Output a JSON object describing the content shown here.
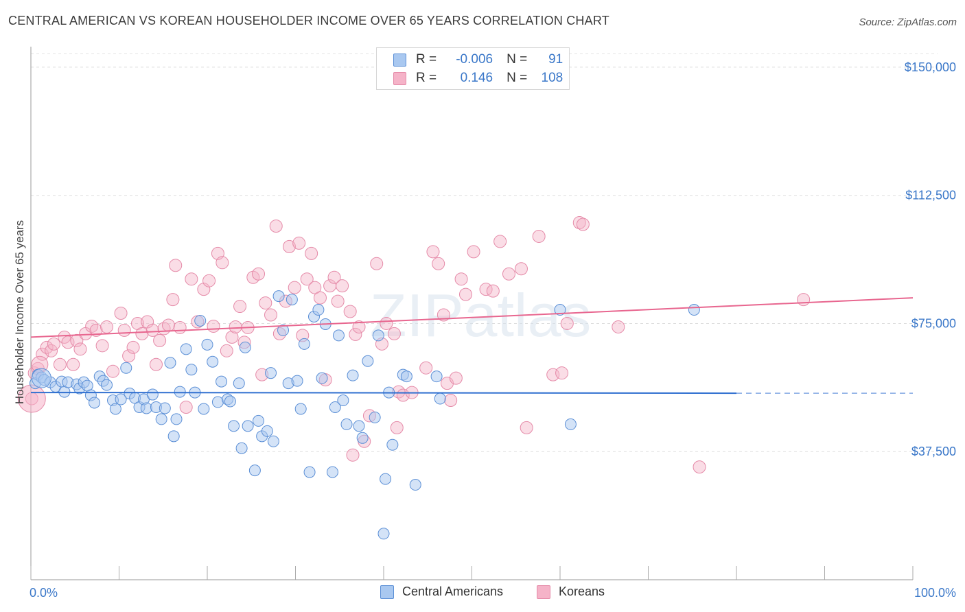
{
  "title": "CENTRAL AMERICAN VS KOREAN HOUSEHOLDER INCOME OVER 65 YEARS CORRELATION CHART",
  "source": "Source: ZipAtlas.com",
  "watermark": "ZIPatlas",
  "legend": {
    "rows": [
      {
        "r_label": "R =",
        "r_value": "-0.006",
        "n_label": "N =",
        "n_value": "91",
        "color": "#a9c8f0"
      },
      {
        "r_label": "R =",
        "r_value": "0.146",
        "n_label": "N =",
        "n_value": "108",
        "color": "#f5b3c8"
      }
    ]
  },
  "bottom_legend": [
    {
      "label": "Central Americans",
      "color": "#a9c8f0"
    },
    {
      "label": "Koreans",
      "color": "#f5b3c8"
    }
  ],
  "chart_data": {
    "type": "scatter",
    "xlabel": "",
    "ylabel": "Householder Income Over 65 years",
    "x_tick_labels": [
      "0.0%",
      "100.0%"
    ],
    "y_tick_labels": [
      "$150,000",
      "$112,500",
      "$75,000",
      "$37,500"
    ],
    "y_tick_values": [
      150000,
      112500,
      75000,
      37500
    ],
    "xlim": [
      0,
      100
    ],
    "ylim": [
      0,
      154000
    ],
    "grid": "horizontal dashed",
    "colors": {
      "blue_fill": "#a9c8f0",
      "blue_stroke": "#5b8fd6",
      "blue_line": "#2f6fd0",
      "pink_fill": "#f5b3c8",
      "pink_stroke": "#e58aa8",
      "pink_line": "#e8668f"
    },
    "series": [
      {
        "name": "Central Americans",
        "trend": {
          "x0": 0,
          "y0": 54800,
          "x1": 80,
          "y1": 54600,
          "dashed_to": 100
        },
        "points": [
          [
            0.5,
            57500
          ],
          [
            0.8,
            60000
          ],
          [
            1.2,
            59200
          ],
          [
            1.5,
            58500
          ],
          [
            2.2,
            57800
          ],
          [
            2.8,
            56500
          ],
          [
            3.5,
            58000
          ],
          [
            3.8,
            55000
          ],
          [
            4.2,
            57800
          ],
          [
            5.2,
            57200
          ],
          [
            5.5,
            56000
          ],
          [
            6,
            57800
          ],
          [
            6.4,
            56800
          ],
          [
            6.8,
            54000
          ],
          [
            7.2,
            51800
          ],
          [
            7.8,
            59500
          ],
          [
            8.2,
            58200
          ],
          [
            8.6,
            57000
          ],
          [
            9.3,
            52500
          ],
          [
            9.6,
            50000
          ],
          [
            10.2,
            52800
          ],
          [
            10.8,
            62000
          ],
          [
            11.2,
            54500
          ],
          [
            11.8,
            53200
          ],
          [
            12.3,
            50500
          ],
          [
            12.8,
            52800
          ],
          [
            13.1,
            50200
          ],
          [
            13.8,
            54200
          ],
          [
            14.2,
            50500
          ],
          [
            14.8,
            47000
          ],
          [
            15.2,
            50200
          ],
          [
            15.8,
            63500
          ],
          [
            16.2,
            42000
          ],
          [
            16.5,
            47000
          ],
          [
            16.9,
            55000
          ],
          [
            17.6,
            67500
          ],
          [
            18.2,
            61500
          ],
          [
            18.6,
            54800
          ],
          [
            19.2,
            75800
          ],
          [
            19.6,
            50000
          ],
          [
            20,
            68800
          ],
          [
            20.6,
            63800
          ],
          [
            21.2,
            52000
          ],
          [
            21.6,
            58000
          ],
          [
            22.3,
            52800
          ],
          [
            22.6,
            52200
          ],
          [
            23,
            45000
          ],
          [
            23.6,
            57500
          ],
          [
            23.9,
            38500
          ],
          [
            24.3,
            68000
          ],
          [
            24.6,
            45000
          ],
          [
            25.4,
            32000
          ],
          [
            25.8,
            46500
          ],
          [
            26.2,
            42000
          ],
          [
            26.8,
            43500
          ],
          [
            27.2,
            60500
          ],
          [
            27.5,
            40500
          ],
          [
            28.1,
            83000
          ],
          [
            28.6,
            73000
          ],
          [
            29.2,
            57500
          ],
          [
            29.6,
            82000
          ],
          [
            30.2,
            58200
          ],
          [
            30.6,
            50000
          ],
          [
            31,
            69000
          ],
          [
            31.6,
            31500
          ],
          [
            32.1,
            77000
          ],
          [
            32.6,
            79000
          ],
          [
            33,
            59000
          ],
          [
            33.4,
            74800
          ],
          [
            34.2,
            31500
          ],
          [
            34.5,
            50500
          ],
          [
            34.9,
            71500
          ],
          [
            35.4,
            52500
          ],
          [
            35.8,
            45500
          ],
          [
            36.5,
            59800
          ],
          [
            37.2,
            45000
          ],
          [
            37.6,
            41500
          ],
          [
            38.2,
            64000
          ],
          [
            39,
            47500
          ],
          [
            39.4,
            71500
          ],
          [
            40.2,
            29500
          ],
          [
            40.6,
            54800
          ],
          [
            41,
            39500
          ],
          [
            42.2,
            60000
          ],
          [
            42.6,
            59500
          ],
          [
            43.6,
            27800
          ],
          [
            46,
            59500
          ],
          [
            46.4,
            53000
          ],
          [
            60,
            79000
          ],
          [
            61.2,
            45500
          ],
          [
            75.2,
            79000
          ],
          [
            40,
            13500
          ]
        ]
      },
      {
        "name": "Koreans",
        "trend": {
          "x0": 0,
          "y0": 71000,
          "x1": 100,
          "y1": 82500
        },
        "points": [
          [
            0.1,
            53000
          ],
          [
            0.4,
            60500
          ],
          [
            0.8,
            61800
          ],
          [
            1.3,
            66000
          ],
          [
            1.8,
            68000
          ],
          [
            2.3,
            67000
          ],
          [
            2.6,
            69000
          ],
          [
            3.3,
            63000
          ],
          [
            3.8,
            71000
          ],
          [
            4.2,
            69500
          ],
          [
            4.8,
            63000
          ],
          [
            5.2,
            70000
          ],
          [
            5.6,
            67500
          ],
          [
            6.2,
            72000
          ],
          [
            6.9,
            74200
          ],
          [
            7.4,
            73000
          ],
          [
            8.1,
            68500
          ],
          [
            8.6,
            74000
          ],
          [
            9.3,
            61000
          ],
          [
            10.2,
            78000
          ],
          [
            10.6,
            73000
          ],
          [
            11.1,
            65500
          ],
          [
            11.6,
            68000
          ],
          [
            12.1,
            75000
          ],
          [
            12.6,
            72000
          ],
          [
            13.2,
            75500
          ],
          [
            13.8,
            73000
          ],
          [
            14.2,
            63000
          ],
          [
            14.6,
            70000
          ],
          [
            15.1,
            73500
          ],
          [
            15.6,
            74500
          ],
          [
            16.1,
            82000
          ],
          [
            16.4,
            92000
          ],
          [
            16.9,
            73800
          ],
          [
            17.6,
            50500
          ],
          [
            18.2,
            88000
          ],
          [
            18.9,
            75500
          ],
          [
            19.6,
            85000
          ],
          [
            20.2,
            87500
          ],
          [
            20.7,
            74200
          ],
          [
            21.2,
            95500
          ],
          [
            21.7,
            92800
          ],
          [
            22.2,
            67000
          ],
          [
            22.8,
            71000
          ],
          [
            23.2,
            74000
          ],
          [
            23.7,
            80000
          ],
          [
            24.2,
            69500
          ],
          [
            24.6,
            73800
          ],
          [
            25.2,
            88500
          ],
          [
            25.8,
            89500
          ],
          [
            26.2,
            60000
          ],
          [
            26.6,
            81000
          ],
          [
            27.2,
            77500
          ],
          [
            27.8,
            103500
          ],
          [
            28.2,
            72000
          ],
          [
            28.9,
            81500
          ],
          [
            29.3,
            97500
          ],
          [
            29.9,
            85500
          ],
          [
            30.4,
            98500
          ],
          [
            30.8,
            71500
          ],
          [
            31.3,
            88000
          ],
          [
            31.8,
            95500
          ],
          [
            32.2,
            85500
          ],
          [
            32.8,
            82500
          ],
          [
            33.4,
            58500
          ],
          [
            33.9,
            86000
          ],
          [
            34.4,
            88500
          ],
          [
            34.8,
            81500
          ],
          [
            35.3,
            86000
          ],
          [
            36.2,
            78500
          ],
          [
            36.8,
            71800
          ],
          [
            37.2,
            74000
          ],
          [
            37.8,
            40500
          ],
          [
            38.4,
            48000
          ],
          [
            39.2,
            92500
          ],
          [
            39.8,
            69000
          ],
          [
            40.3,
            75000
          ],
          [
            41.2,
            72000
          ],
          [
            41.7,
            55000
          ],
          [
            42.2,
            54000
          ],
          [
            44.8,
            62000
          ],
          [
            45.6,
            96000
          ],
          [
            46.2,
            92500
          ],
          [
            46.8,
            77500
          ],
          [
            47.2,
            57500
          ],
          [
            48.2,
            59000
          ],
          [
            48.8,
            88000
          ],
          [
            49.3,
            83500
          ],
          [
            50.2,
            96000
          ],
          [
            51.6,
            85000
          ],
          [
            52.4,
            84500
          ],
          [
            53.2,
            99000
          ],
          [
            54.2,
            89500
          ],
          [
            55.6,
            91000
          ],
          [
            57.6,
            100500
          ],
          [
            59.2,
            60000
          ],
          [
            60.2,
            60500
          ],
          [
            60.8,
            75000
          ],
          [
            62.2,
            104500
          ],
          [
            62.6,
            104000
          ],
          [
            66.6,
            74000
          ],
          [
            87.6,
            82000
          ],
          [
            75.8,
            33000
          ],
          [
            47.6,
            52500
          ],
          [
            36.5,
            36500
          ],
          [
            43.2,
            54800
          ],
          [
            41.5,
            44500
          ],
          [
            56.2,
            44500
          ]
        ]
      }
    ]
  }
}
